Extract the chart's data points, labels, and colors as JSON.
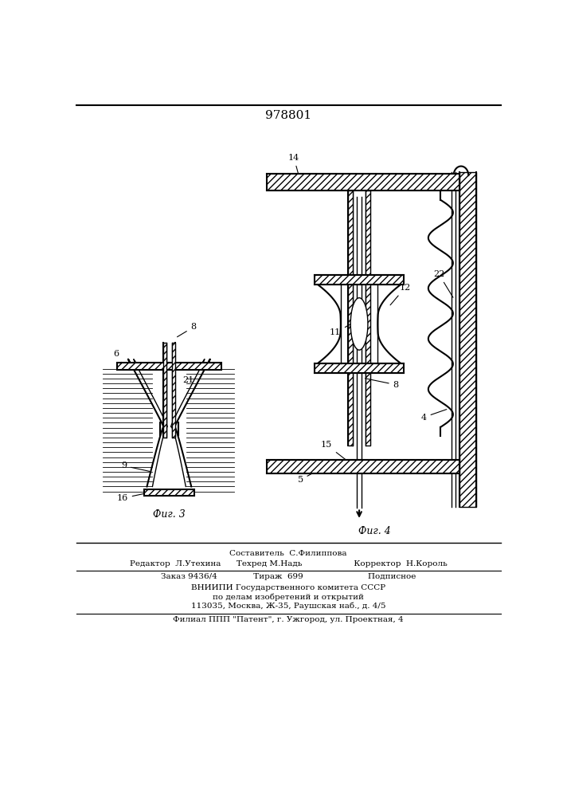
{
  "title": "978801",
  "bg_color": "#ffffff",
  "line_color": "#000000",
  "fig3_label": "Фиг. 3",
  "fig4_label": "Фиг. 4",
  "bottom_lines": [
    "Составитель  С.Филиппова",
    "Редактор  Л.Утехина      Техред М.Надь                    Корректор  Н.Король",
    "Заказ 9436/4              Тираж  699                         Подписное",
    "ВНИИПИ Государственного комитета СССР",
    "по делам изобретений и открытий",
    "113035, Москва, Ж-35, Раушская наб., д. 4/5",
    "Филиал ППП \"Патент\", г. Ужгород, ул. Проектная, 4"
  ]
}
